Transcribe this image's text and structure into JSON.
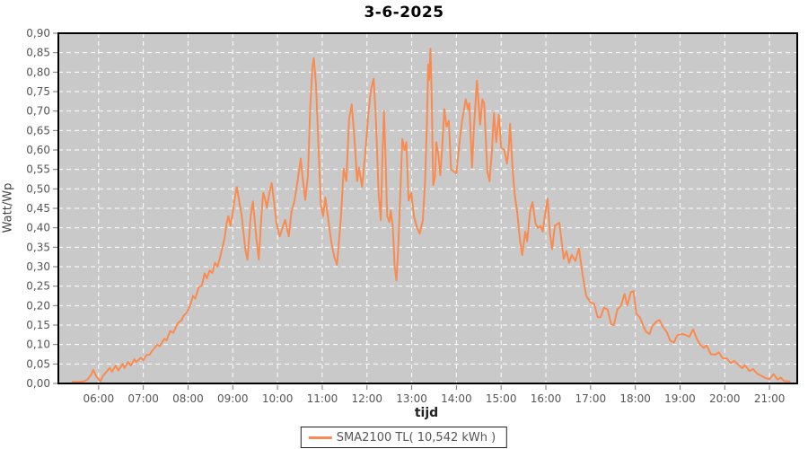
{
  "chart": {
    "title": "3-6-2025",
    "xlabel": "tijd",
    "ylabel": "Watt/Wp",
    "legend": {
      "label": "SMA2100 TL( 10,542 kWh )"
    }
  },
  "chart_data": {
    "type": "line",
    "title": "3-6-2025",
    "xlabel": "tijd",
    "ylabel": "Watt/Wp",
    "x_unit": "time of day (decimal hours)",
    "y_unit": "Watt/Wp",
    "xlim": [
      5.1,
      21.62
    ],
    "ylim": [
      0,
      0.9
    ],
    "grid": true,
    "grid_style": "white dashed on gray plot background",
    "legend_position": "bottom-center",
    "x_tick_hours": [
      6,
      7,
      8,
      9,
      10,
      11,
      12,
      13,
      14,
      15,
      16,
      17,
      18,
      19,
      20,
      21
    ],
    "x_tick_labels": [
      "06:00",
      "07:00",
      "08:00",
      "09:00",
      "10:00",
      "11:00",
      "12:00",
      "13:00",
      "14:00",
      "15:00",
      "16:00",
      "17:00",
      "18:00",
      "19:00",
      "20:00",
      "21:00"
    ],
    "y_ticks": [
      0,
      0.05,
      0.1,
      0.15,
      0.2,
      0.25,
      0.3,
      0.35,
      0.4,
      0.45,
      0.5,
      0.55,
      0.6,
      0.65,
      0.7,
      0.75,
      0.8,
      0.85,
      0.9
    ],
    "y_tick_labels": [
      "0,00",
      "0,05",
      "0,10",
      "0,15",
      "0,20",
      "0,25",
      "0,30",
      "0,35",
      "0,40",
      "0,45",
      "0,50",
      "0,55",
      "0,60",
      "0,65",
      "0,70",
      "0,75",
      "0,80",
      "0,85",
      "0,90"
    ],
    "colors": {
      "line": "#FA8B50",
      "plot_background": "#C9C9C9",
      "gridline": "#FFFFFF",
      "plot_border": "#000000",
      "tick_mark": "#777777",
      "tick_text": "#555555",
      "title_text": "#000000"
    },
    "series": [
      {
        "name": "SMA2100 TL( 10,542 kWh )",
        "color": "#FA8B50",
        "points": [
          [
            5.42,
            0.004
          ],
          [
            5.55,
            0.004
          ],
          [
            5.67,
            0.005
          ],
          [
            5.75,
            0.01
          ],
          [
            5.83,
            0.022
          ],
          [
            5.88,
            0.035
          ],
          [
            5.95,
            0.018
          ],
          [
            6.04,
            0.005
          ],
          [
            6.1,
            0.02
          ],
          [
            6.16,
            0.028
          ],
          [
            6.25,
            0.04
          ],
          [
            6.3,
            0.03
          ],
          [
            6.38,
            0.046
          ],
          [
            6.44,
            0.033
          ],
          [
            6.54,
            0.05
          ],
          [
            6.58,
            0.04
          ],
          [
            6.66,
            0.055
          ],
          [
            6.72,
            0.046
          ],
          [
            6.8,
            0.062
          ],
          [
            6.84,
            0.055
          ],
          [
            6.94,
            0.066
          ],
          [
            7.0,
            0.06
          ],
          [
            7.07,
            0.073
          ],
          [
            7.14,
            0.074
          ],
          [
            7.2,
            0.084
          ],
          [
            7.31,
            0.1
          ],
          [
            7.37,
            0.096
          ],
          [
            7.47,
            0.115
          ],
          [
            7.52,
            0.111
          ],
          [
            7.6,
            0.135
          ],
          [
            7.67,
            0.13
          ],
          [
            7.77,
            0.155
          ],
          [
            7.85,
            0.162
          ],
          [
            7.9,
            0.174
          ],
          [
            7.97,
            0.182
          ],
          [
            8.04,
            0.198
          ],
          [
            8.11,
            0.225
          ],
          [
            8.16,
            0.218
          ],
          [
            8.24,
            0.247
          ],
          [
            8.31,
            0.252
          ],
          [
            8.37,
            0.283
          ],
          [
            8.42,
            0.27
          ],
          [
            8.48,
            0.29
          ],
          [
            8.54,
            0.284
          ],
          [
            8.6,
            0.31
          ],
          [
            8.66,
            0.3
          ],
          [
            8.74,
            0.335
          ],
          [
            8.82,
            0.375
          ],
          [
            8.86,
            0.41
          ],
          [
            8.9,
            0.43
          ],
          [
            8.95,
            0.405
          ],
          [
            9.0,
            0.44
          ],
          [
            9.05,
            0.48
          ],
          [
            9.09,
            0.505
          ],
          [
            9.14,
            0.47
          ],
          [
            9.2,
            0.43
          ],
          [
            9.28,
            0.345
          ],
          [
            9.33,
            0.318
          ],
          [
            9.4,
            0.43
          ],
          [
            9.45,
            0.468
          ],
          [
            9.53,
            0.37
          ],
          [
            9.58,
            0.318
          ],
          [
            9.64,
            0.43
          ],
          [
            9.68,
            0.49
          ],
          [
            9.72,
            0.475
          ],
          [
            9.76,
            0.452
          ],
          [
            9.82,
            0.49
          ],
          [
            9.87,
            0.515
          ],
          [
            9.92,
            0.47
          ],
          [
            9.98,
            0.41
          ],
          [
            10.05,
            0.378
          ],
          [
            10.11,
            0.4
          ],
          [
            10.17,
            0.42
          ],
          [
            10.25,
            0.378
          ],
          [
            10.31,
            0.44
          ],
          [
            10.38,
            0.47
          ],
          [
            10.45,
            0.52
          ],
          [
            10.52,
            0.578
          ],
          [
            10.56,
            0.53
          ],
          [
            10.62,
            0.472
          ],
          [
            10.68,
            0.535
          ],
          [
            10.73,
            0.705
          ],
          [
            10.78,
            0.813
          ],
          [
            10.81,
            0.836
          ],
          [
            10.86,
            0.767
          ],
          [
            10.92,
            0.6
          ],
          [
            10.97,
            0.46
          ],
          [
            11.02,
            0.43
          ],
          [
            11.07,
            0.478
          ],
          [
            11.12,
            0.435
          ],
          [
            11.2,
            0.365
          ],
          [
            11.27,
            0.325
          ],
          [
            11.33,
            0.305
          ],
          [
            11.42,
            0.432
          ],
          [
            11.48,
            0.552
          ],
          [
            11.54,
            0.52
          ],
          [
            11.6,
            0.679
          ],
          [
            11.66,
            0.717
          ],
          [
            11.72,
            0.63
          ],
          [
            11.78,
            0.52
          ],
          [
            11.82,
            0.555
          ],
          [
            11.89,
            0.505
          ],
          [
            11.96,
            0.59
          ],
          [
            12.03,
            0.69
          ],
          [
            12.09,
            0.755
          ],
          [
            12.15,
            0.783
          ],
          [
            12.2,
            0.68
          ],
          [
            12.26,
            0.49
          ],
          [
            12.31,
            0.42
          ],
          [
            12.35,
            0.6
          ],
          [
            12.38,
            0.7
          ],
          [
            12.41,
            0.6
          ],
          [
            12.45,
            0.43
          ],
          [
            12.5,
            0.415
          ],
          [
            12.53,
            0.445
          ],
          [
            12.58,
            0.4
          ],
          [
            12.62,
            0.3
          ],
          [
            12.66,
            0.265
          ],
          [
            12.7,
            0.35
          ],
          [
            12.75,
            0.5
          ],
          [
            12.79,
            0.628
          ],
          [
            12.84,
            0.6
          ],
          [
            12.88,
            0.62
          ],
          [
            12.93,
            0.47
          ],
          [
            12.99,
            0.49
          ],
          [
            13.05,
            0.43
          ],
          [
            13.12,
            0.4
          ],
          [
            13.18,
            0.385
          ],
          [
            13.25,
            0.42
          ],
          [
            13.3,
            0.52
          ],
          [
            13.34,
            0.67
          ],
          [
            13.37,
            0.82
          ],
          [
            13.39,
            0.78
          ],
          [
            13.42,
            0.86
          ],
          [
            13.45,
            0.72
          ],
          [
            13.48,
            0.51
          ],
          [
            13.52,
            0.53
          ],
          [
            13.55,
            0.62
          ],
          [
            13.6,
            0.585
          ],
          [
            13.64,
            0.535
          ],
          [
            13.69,
            0.62
          ],
          [
            13.73,
            0.705
          ],
          [
            13.78,
            0.66
          ],
          [
            13.83,
            0.675
          ],
          [
            13.88,
            0.55
          ],
          [
            13.94,
            0.545
          ],
          [
            14.0,
            0.54
          ],
          [
            14.06,
            0.61
          ],
          [
            14.12,
            0.67
          ],
          [
            14.21,
            0.73
          ],
          [
            14.26,
            0.705
          ],
          [
            14.29,
            0.72
          ],
          [
            14.35,
            0.555
          ],
          [
            14.39,
            0.655
          ],
          [
            14.46,
            0.778
          ],
          [
            14.53,
            0.665
          ],
          [
            14.58,
            0.73
          ],
          [
            14.62,
            0.72
          ],
          [
            14.69,
            0.545
          ],
          [
            14.74,
            0.52
          ],
          [
            14.79,
            0.59
          ],
          [
            14.84,
            0.695
          ],
          [
            14.89,
            0.62
          ],
          [
            14.95,
            0.69
          ],
          [
            15.0,
            0.606
          ],
          [
            15.07,
            0.6
          ],
          [
            15.13,
            0.565
          ],
          [
            15.17,
            0.605
          ],
          [
            15.2,
            0.667
          ],
          [
            15.25,
            0.56
          ],
          [
            15.3,
            0.49
          ],
          [
            15.36,
            0.44
          ],
          [
            15.42,
            0.37
          ],
          [
            15.47,
            0.33
          ],
          [
            15.54,
            0.39
          ],
          [
            15.58,
            0.365
          ],
          [
            15.65,
            0.445
          ],
          [
            15.7,
            0.466
          ],
          [
            15.77,
            0.41
          ],
          [
            15.82,
            0.4
          ],
          [
            15.88,
            0.405
          ],
          [
            15.93,
            0.39
          ],
          [
            15.97,
            0.425
          ],
          [
            16.04,
            0.475
          ],
          [
            16.09,
            0.385
          ],
          [
            16.14,
            0.345
          ],
          [
            16.2,
            0.405
          ],
          [
            16.3,
            0.413
          ],
          [
            16.4,
            0.32
          ],
          [
            16.46,
            0.34
          ],
          [
            16.52,
            0.31
          ],
          [
            16.58,
            0.33
          ],
          [
            16.66,
            0.315
          ],
          [
            16.74,
            0.347
          ],
          [
            16.82,
            0.28
          ],
          [
            16.9,
            0.225
          ],
          [
            17.0,
            0.208
          ],
          [
            17.08,
            0.205
          ],
          [
            17.16,
            0.17
          ],
          [
            17.22,
            0.17
          ],
          [
            17.3,
            0.195
          ],
          [
            17.38,
            0.19
          ],
          [
            17.46,
            0.152
          ],
          [
            17.52,
            0.15
          ],
          [
            17.6,
            0.19
          ],
          [
            17.68,
            0.2
          ],
          [
            17.76,
            0.23
          ],
          [
            17.82,
            0.2
          ],
          [
            17.9,
            0.235
          ],
          [
            17.96,
            0.237
          ],
          [
            18.02,
            0.18
          ],
          [
            18.1,
            0.17
          ],
          [
            18.18,
            0.148
          ],
          [
            18.24,
            0.133
          ],
          [
            18.32,
            0.127
          ],
          [
            18.38,
            0.148
          ],
          [
            18.48,
            0.16
          ],
          [
            18.54,
            0.163
          ],
          [
            18.62,
            0.145
          ],
          [
            18.7,
            0.133
          ],
          [
            18.78,
            0.11
          ],
          [
            18.86,
            0.105
          ],
          [
            18.94,
            0.124
          ],
          [
            19.04,
            0.127
          ],
          [
            19.11,
            0.125
          ],
          [
            19.21,
            0.12
          ],
          [
            19.29,
            0.139
          ],
          [
            19.37,
            0.116
          ],
          [
            19.45,
            0.1
          ],
          [
            19.53,
            0.091
          ],
          [
            19.59,
            0.098
          ],
          [
            19.69,
            0.075
          ],
          [
            19.79,
            0.074
          ],
          [
            19.87,
            0.08
          ],
          [
            19.95,
            0.065
          ],
          [
            20.05,
            0.064
          ],
          [
            20.13,
            0.052
          ],
          [
            20.21,
            0.058
          ],
          [
            20.31,
            0.048
          ],
          [
            20.39,
            0.039
          ],
          [
            20.45,
            0.047
          ],
          [
            20.55,
            0.032
          ],
          [
            20.63,
            0.037
          ],
          [
            20.73,
            0.025
          ],
          [
            20.81,
            0.02
          ],
          [
            20.91,
            0.014
          ],
          [
            21.0,
            0.011
          ],
          [
            21.09,
            0.024
          ],
          [
            21.18,
            0.01
          ],
          [
            21.25,
            0.015
          ],
          [
            21.33,
            0.006
          ],
          [
            21.45,
            0.005
          ]
        ]
      }
    ]
  }
}
